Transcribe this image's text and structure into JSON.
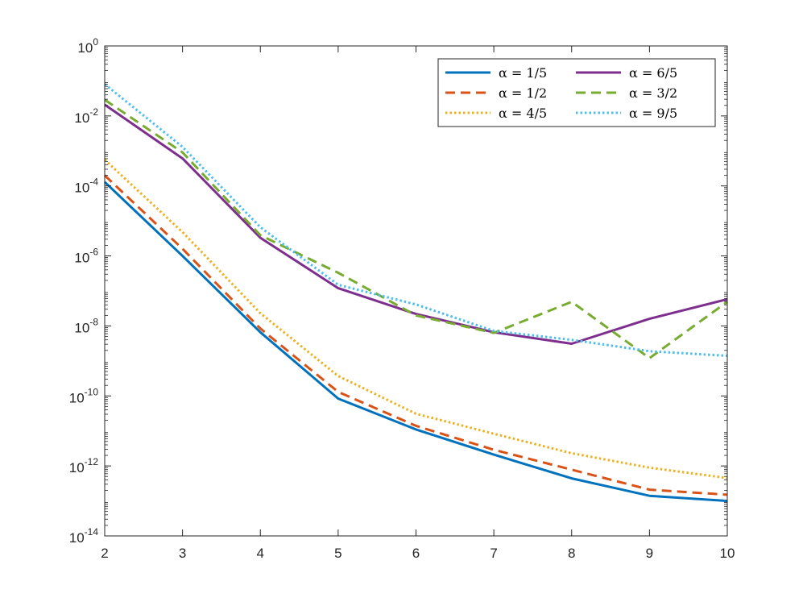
{
  "chart_data": {
    "type": "line",
    "title": "",
    "xlabel": "",
    "ylabel": "",
    "y_scale": "log",
    "xlim": [
      2,
      10
    ],
    "ylim_exponent": [
      -14,
      0
    ],
    "grid": false,
    "legend_placement": "top-right",
    "legend_columns": 2,
    "x_ticks": [
      "2",
      "3",
      "4",
      "5",
      "6",
      "7",
      "8",
      "9",
      "10"
    ],
    "y_tick_base": "10",
    "y_tick_exponents": [
      "-14",
      "-12",
      "-10",
      "-8",
      "-6",
      "-4",
      "-2",
      "0"
    ],
    "x": [
      2,
      3,
      4,
      5,
      6,
      7,
      8,
      9,
      10
    ],
    "series": [
      {
        "name": "α = 1/5",
        "color": "#0072BD",
        "dash": "solid",
        "values": [
          0.00013,
          1e-06,
          6.6e-09,
          8.4e-11,
          1.1e-11,
          2.1e-12,
          4.4e-13,
          1.4e-13,
          1e-13
        ]
      },
      {
        "name": "α = 1/2",
        "color": "#D95319",
        "dash": "dashed",
        "values": [
          0.0002,
          1.6e-06,
          8.4e-09,
          1.3e-10,
          1.4e-11,
          2.9e-12,
          7.8e-13,
          2.1e-13,
          1.5e-13
        ]
      },
      {
        "name": "α = 4/5",
        "color": "#EDB120",
        "dash": "dotted",
        "values": [
          0.00056,
          4.8e-06,
          2.3e-08,
          3.7e-10,
          3.1e-11,
          8.3e-12,
          2.3e-12,
          8.9e-13,
          4.5e-13
        ]
      },
      {
        "name": "α = 6/5",
        "color": "#7E2F8E",
        "dash": "solid",
        "values": [
          0.021,
          0.00061,
          3.3e-06,
          1.2e-07,
          2.2e-08,
          6.6e-09,
          3.1e-09,
          1.6e-08,
          5.8e-08
        ]
      },
      {
        "name": "α = 3/2",
        "color": "#77AC30",
        "dash": "dashed",
        "values": [
          0.029,
          0.00091,
          3.9e-06,
          3.3e-07,
          2e-08,
          6.3e-09,
          4.9e-08,
          1.2e-09,
          4.9e-08
        ]
      },
      {
        "name": "α = 9/5",
        "color": "#4DBEEE",
        "dash": "dotted",
        "values": [
          0.081,
          0.0013,
          6.6e-06,
          1.5e-07,
          4.1e-08,
          7.2e-09,
          4e-09,
          1.9e-09,
          1.4e-09
        ]
      }
    ]
  }
}
